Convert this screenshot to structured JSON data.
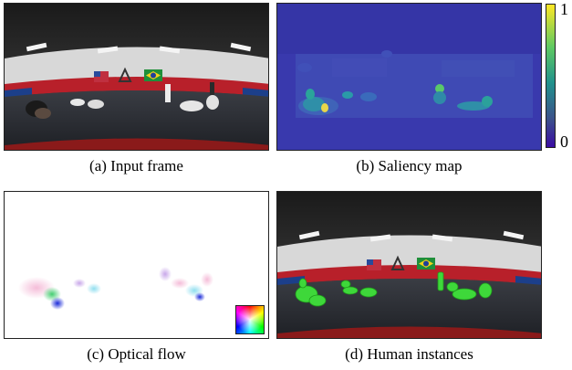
{
  "figure": {
    "panels": [
      {
        "id": "a",
        "caption": "(a) Input frame",
        "content": "equirectangular-gym-photo"
      },
      {
        "id": "b",
        "caption": "(b) Saliency map",
        "content": "saliency-heatmap"
      },
      {
        "id": "c",
        "caption": "(c) Optical flow",
        "content": "optical-flow-visualization"
      },
      {
        "id": "d",
        "caption": "(d) Human instances",
        "content": "gym-photo-with-green-human-masks"
      }
    ],
    "colorbar": {
      "max_label": "1",
      "min_label": "0",
      "colors": [
        "#fde725",
        "#5ec962",
        "#21918c",
        "#3b528b",
        "#3a0ca3"
      ]
    },
    "heatmap_background": "#3b3bb3"
  }
}
